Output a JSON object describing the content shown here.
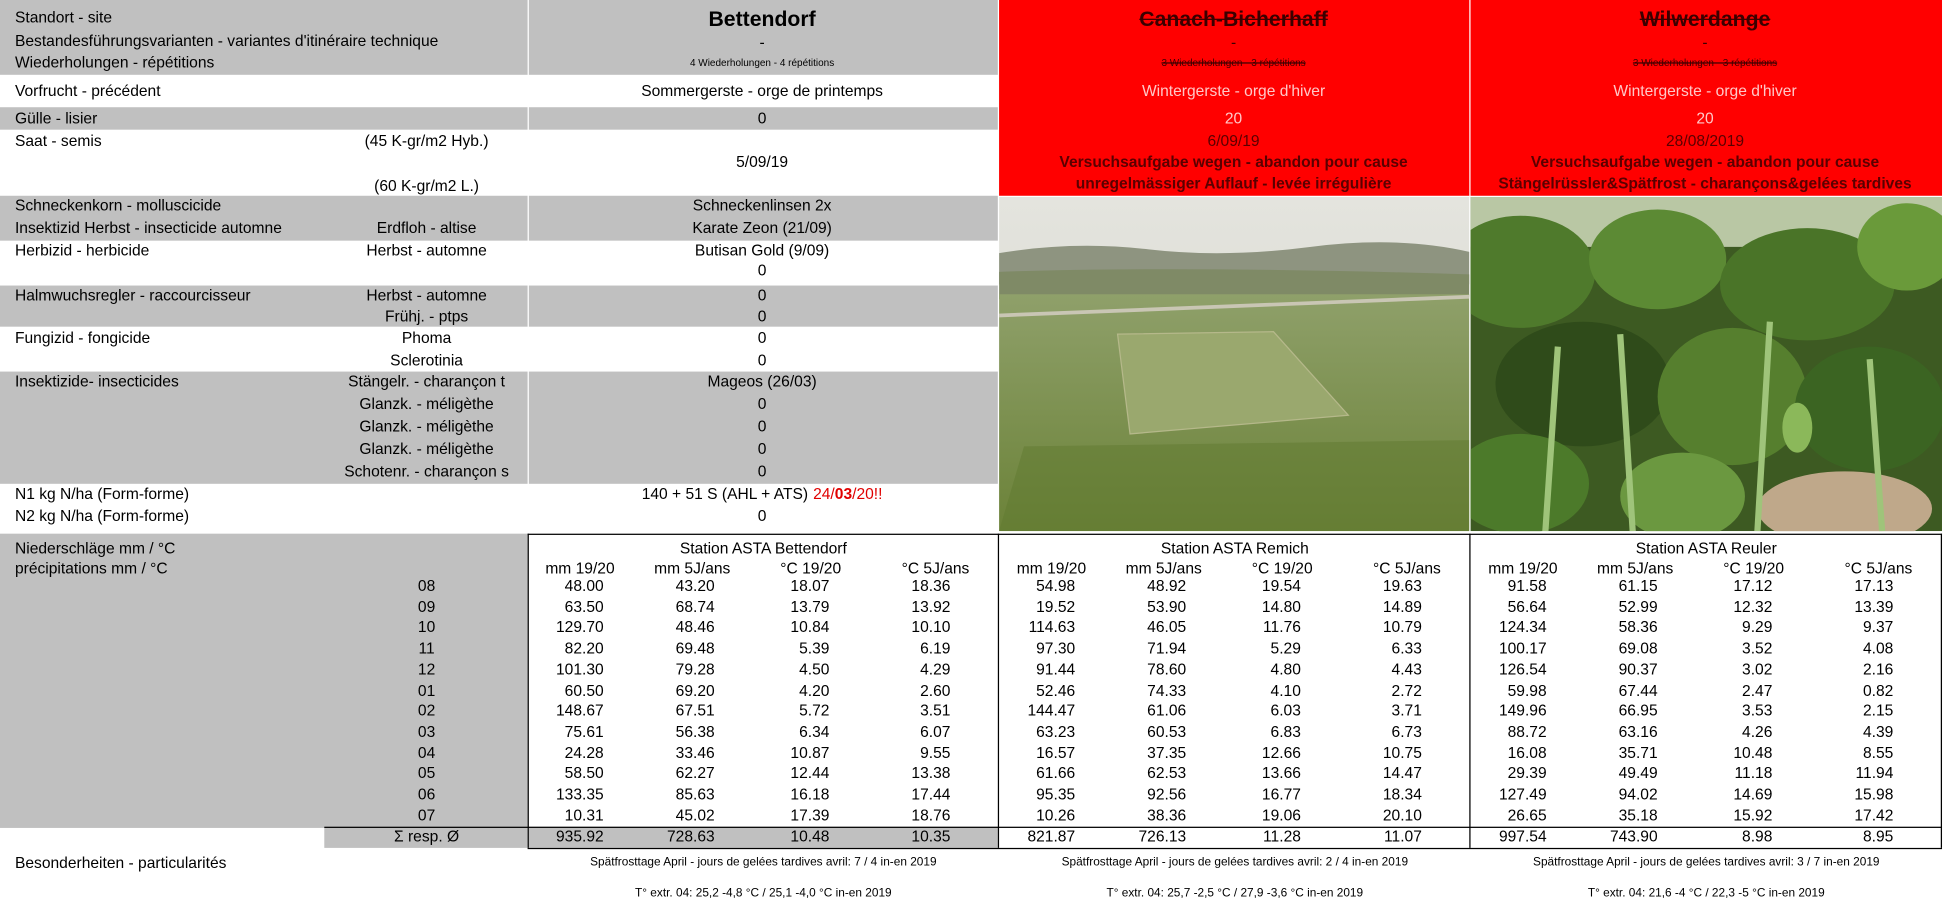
{
  "header": {
    "labels": [
      "Standort - site",
      "Bestandesführungsvarianten - variantes d'itinéraire technique",
      "Wiederholungen - répétitions"
    ],
    "sites": [
      {
        "name": "Bettendorf",
        "variant": "-",
        "reps": "4 Wiederholungen - 4 répétitions"
      },
      {
        "name": "Canach-Bicherhaff",
        "variant": "-",
        "reps": "3 Wiederholungen - 3 répétitions",
        "precedent": "Wintergerste - orge d'hiver",
        "slurry": "20",
        "sowing": "6/09/19",
        "note": [
          "Versuchsaufgabe wegen - abandon pour cause",
          "unregelmässiger Auflauf - levée irrégulière"
        ]
      },
      {
        "name": "Wilwerdange",
        "variant": "-",
        "reps": "3 Wiederholungen - 3 répétitions",
        "precedent": "Wintergerste - orge d'hiver",
        "slurry": "20",
        "sowing": "28/08/2019",
        "note": [
          "Versuchsaufgabe wegen - abandon pour cause",
          "Stängelrüssler&Spätfrost - charançons&gelées tardives"
        ]
      }
    ]
  },
  "management": [
    {
      "label": "Vorfrucht - précédent",
      "value": "Sommergerste - orge de printemps"
    },
    {
      "label": "Gülle - lisier",
      "value": "0"
    },
    {
      "label": "Saat - semis",
      "sub": "(45 K-gr/m2 Hyb.)"
    },
    {
      "value": "5/09/19"
    },
    {
      "sub": "(60 K-gr/m2 L.)"
    },
    {
      "label": "Schneckenkorn - molluscicide",
      "value": "Schneckenlinsen 2x"
    },
    {
      "label": "Insektizid Herbst - insecticide automne",
      "sub": "Erdfloh - altise",
      "value": "Karate Zeon (21/09)"
    },
    {
      "label": "Herbizid - herbicide",
      "sub": "Herbst - automne",
      "value": "Butisan Gold (9/09)"
    },
    {
      "value": "0"
    },
    {
      "label": "Halmwuchsregler - raccourcisseur",
      "sub": "Herbst - automne",
      "value": "0"
    },
    {
      "sub": "Frühj. - ptps",
      "value": "0"
    },
    {
      "label": "Fungizid - fongicide",
      "sub": "Phoma",
      "value": "0"
    },
    {
      "sub": "Sclerotinia",
      "value": "0"
    },
    {
      "label": "Insektizide- insecticides",
      "sub": "Stängelr. - charançon t",
      "value": "Mageos (26/03)"
    },
    {
      "sub": "Glanzk. - méligèthe",
      "value": "0"
    },
    {
      "sub": "Glanzk. - méligèthe",
      "value": "0"
    },
    {
      "sub": "Glanzk. - méligèthe",
      "value": "0"
    },
    {
      "sub": "Schotenr. - charançon s",
      "value": "0"
    },
    {
      "label": "N1 kg N/ha (Form-forme)",
      "value": "140 + 51 S (AHL + ATS)",
      "date_parts": [
        "24/",
        "03",
        "/20!!"
      ]
    },
    {
      "label": "N2 kg N/ha (Form-forme)",
      "value": "0"
    }
  ],
  "weather": {
    "label": [
      "Niederschläge mm / °C",
      "précipitations mm / °C"
    ],
    "months": [
      "08",
      "09",
      "10",
      "11",
      "12",
      "01",
      "02",
      "03",
      "04",
      "05",
      "06",
      "07"
    ],
    "sum_label": "Σ resp. Ø",
    "stations": [
      {
        "name": "Station ASTA Bettendorf",
        "columns": [
          "mm 19/20",
          "mm 5J/ans",
          "°C 19/20",
          "°C 5J/ans"
        ],
        "rows": [
          [
            "48.00",
            "43.20",
            "18.07",
            "18.36"
          ],
          [
            "63.50",
            "68.74",
            "13.79",
            "13.92"
          ],
          [
            "129.70",
            "48.46",
            "10.84",
            "10.10"
          ],
          [
            "82.20",
            "69.48",
            "5.39",
            "6.19"
          ],
          [
            "101.30",
            "79.28",
            "4.50",
            "4.29"
          ],
          [
            "60.50",
            "69.20",
            "4.20",
            "2.60"
          ],
          [
            "148.67",
            "67.51",
            "5.72",
            "3.51"
          ],
          [
            "75.61",
            "56.38",
            "6.34",
            "6.07"
          ],
          [
            "24.28",
            "33.46",
            "10.87",
            "9.55"
          ],
          [
            "58.50",
            "62.27",
            "12.44",
            "13.38"
          ],
          [
            "133.35",
            "85.63",
            "16.18",
            "17.44"
          ],
          [
            "10.31",
            "45.02",
            "17.39",
            "18.76"
          ]
        ],
        "sum": [
          "935.92",
          "728.63",
          "10.48",
          "10.35"
        ],
        "notes": [
          "Spätfrosttage April - jours de gelées tardives avril: 7 / 4 in-en 2019",
          "T° extr. 04: 25,2  -4,8 °C / 25,1 -4,0 °C in-en 2019"
        ]
      },
      {
        "name": "Station ASTA Remich",
        "columns": [
          "mm 19/20",
          "mm 5J/ans",
          "°C 19/20",
          "°C 5J/ans"
        ],
        "rows": [
          [
            "54.98",
            "48.92",
            "19.54",
            "19.63"
          ],
          [
            "19.52",
            "53.90",
            "14.80",
            "14.89"
          ],
          [
            "114.63",
            "46.05",
            "11.76",
            "10.79"
          ],
          [
            "97.30",
            "71.94",
            "5.29",
            "6.33"
          ],
          [
            "91.44",
            "78.60",
            "4.80",
            "4.43"
          ],
          [
            "52.46",
            "74.33",
            "4.10",
            "2.72"
          ],
          [
            "144.47",
            "61.06",
            "6.03",
            "3.71"
          ],
          [
            "63.23",
            "60.53",
            "6.83",
            "6.73"
          ],
          [
            "16.57",
            "37.35",
            "12.66",
            "10.75"
          ],
          [
            "61.66",
            "62.53",
            "13.66",
            "14.47"
          ],
          [
            "95.35",
            "92.56",
            "16.77",
            "18.34"
          ],
          [
            "10.26",
            "38.36",
            "19.06",
            "20.10"
          ]
        ],
        "sum": [
          "821.87",
          "726.13",
          "11.28",
          "11.07"
        ],
        "notes": [
          "Spätfrosttage April - jours de gelées tardives avril: 2 / 4 in-en 2019",
          "T° extr. 04: 25,7 -2,5 °C / 27,9 -3,6 °C in-en 2019"
        ]
      },
      {
        "name": "Station ASTA Reuler",
        "columns": [
          "mm 19/20",
          "mm 5J/ans",
          "°C 19/20",
          "°C 5J/ans"
        ],
        "rows": [
          [
            "91.58",
            "61.15",
            "17.12",
            "17.13"
          ],
          [
            "56.64",
            "52.99",
            "12.32",
            "13.39"
          ],
          [
            "124.34",
            "58.36",
            "9.29",
            "9.37"
          ],
          [
            "100.17",
            "69.08",
            "3.52",
            "4.08"
          ],
          [
            "126.54",
            "90.37",
            "3.02",
            "2.16"
          ],
          [
            "59.98",
            "67.44",
            "2.47",
            "0.82"
          ],
          [
            "149.96",
            "66.95",
            "3.53",
            "2.15"
          ],
          [
            "88.72",
            "63.16",
            "4.26",
            "4.39"
          ],
          [
            "16.08",
            "35.71",
            "10.48",
            "8.55"
          ],
          [
            "29.39",
            "49.49",
            "11.18",
            "11.94"
          ],
          [
            "127.49",
            "94.02",
            "14.69",
            "15.98"
          ],
          [
            "26.65",
            "35.18",
            "15.92",
            "17.42"
          ]
        ],
        "sum": [
          "997.54",
          "743.90",
          "8.98",
          "8.95"
        ],
        "notes": [
          "Spätfrosttage April - jours de gelées tardives avril: 3 / 7 in-en 2019",
          "T° extr. 04: 21,6 -4 °C / 22,3 -5 °C in-en 2019"
        ]
      }
    ],
    "remarks_label": "Besonderheiten - particularités"
  }
}
